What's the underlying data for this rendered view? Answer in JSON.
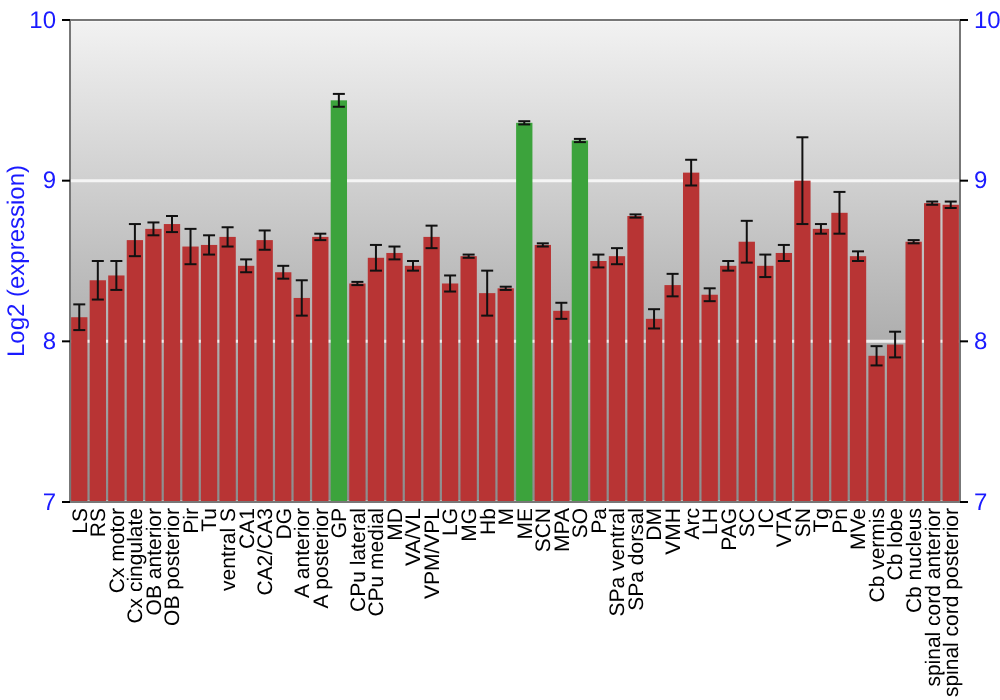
{
  "chart_data": {
    "type": "bar",
    "ylabel": "Log2 (expression)",
    "categories": [
      "LS",
      "RS",
      "Cx motor",
      "Cx cingulate",
      "OB anterior",
      "OB posterior",
      "Pir",
      "Tu",
      "ventral S",
      "CA1",
      "CA2/CA3",
      "DG",
      "A anterior",
      "A posterior",
      "GP",
      "CPu lateral",
      "CPu medial",
      "MD",
      "VA/VL",
      "VPM/VPL",
      "LG",
      "MG",
      "Hb",
      "M",
      "ME",
      "SCN",
      "MPA",
      "SO",
      "Pa",
      "SPa ventral",
      "SPa dorsal",
      "DM",
      "VMH",
      "Arc",
      "LH",
      "PAG",
      "SC",
      "IC",
      "VTA",
      "SN",
      "Tg",
      "Pn",
      "MVe",
      "Cb vermis",
      "Cb lobe",
      "Cb nucleus",
      "spinal cord anterior",
      "spinal cord posterior"
    ],
    "values": [
      8.15,
      8.38,
      8.41,
      8.63,
      8.7,
      8.73,
      8.59,
      8.6,
      8.65,
      8.47,
      8.63,
      8.43,
      8.27,
      8.65,
      9.5,
      8.36,
      8.52,
      8.55,
      8.47,
      8.65,
      8.36,
      8.53,
      8.3,
      8.33,
      9.36,
      8.6,
      8.19,
      9.25,
      8.5,
      8.53,
      8.78,
      8.14,
      8.35,
      9.05,
      8.29,
      8.47,
      8.62,
      8.47,
      8.55,
      9.0,
      8.7,
      8.8,
      8.53,
      7.91,
      7.98,
      8.62,
      8.86,
      8.85
    ],
    "errors": [
      0.08,
      0.12,
      0.09,
      0.1,
      0.04,
      0.05,
      0.11,
      0.06,
      0.06,
      0.04,
      0.06,
      0.04,
      0.11,
      0.02,
      0.04,
      0.01,
      0.08,
      0.04,
      0.03,
      0.07,
      0.05,
      0.01,
      0.14,
      0.01,
      0.01,
      0.01,
      0.05,
      0.01,
      0.04,
      0.05,
      0.01,
      0.06,
      0.07,
      0.08,
      0.04,
      0.03,
      0.13,
      0.07,
      0.05,
      0.27,
      0.03,
      0.13,
      0.03,
      0.06,
      0.08,
      0.01,
      0.01,
      0.02
    ],
    "colors": [
      "#b83434",
      "#b83434",
      "#b83434",
      "#b83434",
      "#b83434",
      "#b83434",
      "#b83434",
      "#b83434",
      "#b83434",
      "#b83434",
      "#b83434",
      "#b83434",
      "#b83434",
      "#b83434",
      "#3ca33c",
      "#b83434",
      "#b83434",
      "#b83434",
      "#b83434",
      "#b83434",
      "#b83434",
      "#b83434",
      "#b83434",
      "#b83434",
      "#3ca33c",
      "#b83434",
      "#b83434",
      "#3ca33c",
      "#b83434",
      "#b83434",
      "#b83434",
      "#b83434",
      "#b83434",
      "#b83434",
      "#b83434",
      "#b83434",
      "#b83434",
      "#b83434",
      "#b83434",
      "#b83434",
      "#b83434",
      "#b83434",
      "#b83434",
      "#b83434",
      "#b83434",
      "#b83434",
      "#b83434",
      "#b83434"
    ],
    "ylim": [
      7,
      10
    ],
    "yticks": [
      7,
      8,
      9,
      10
    ],
    "y2lim": [
      7,
      10
    ],
    "y2ticks": [
      7,
      8,
      9,
      10
    ],
    "grid": "y"
  }
}
